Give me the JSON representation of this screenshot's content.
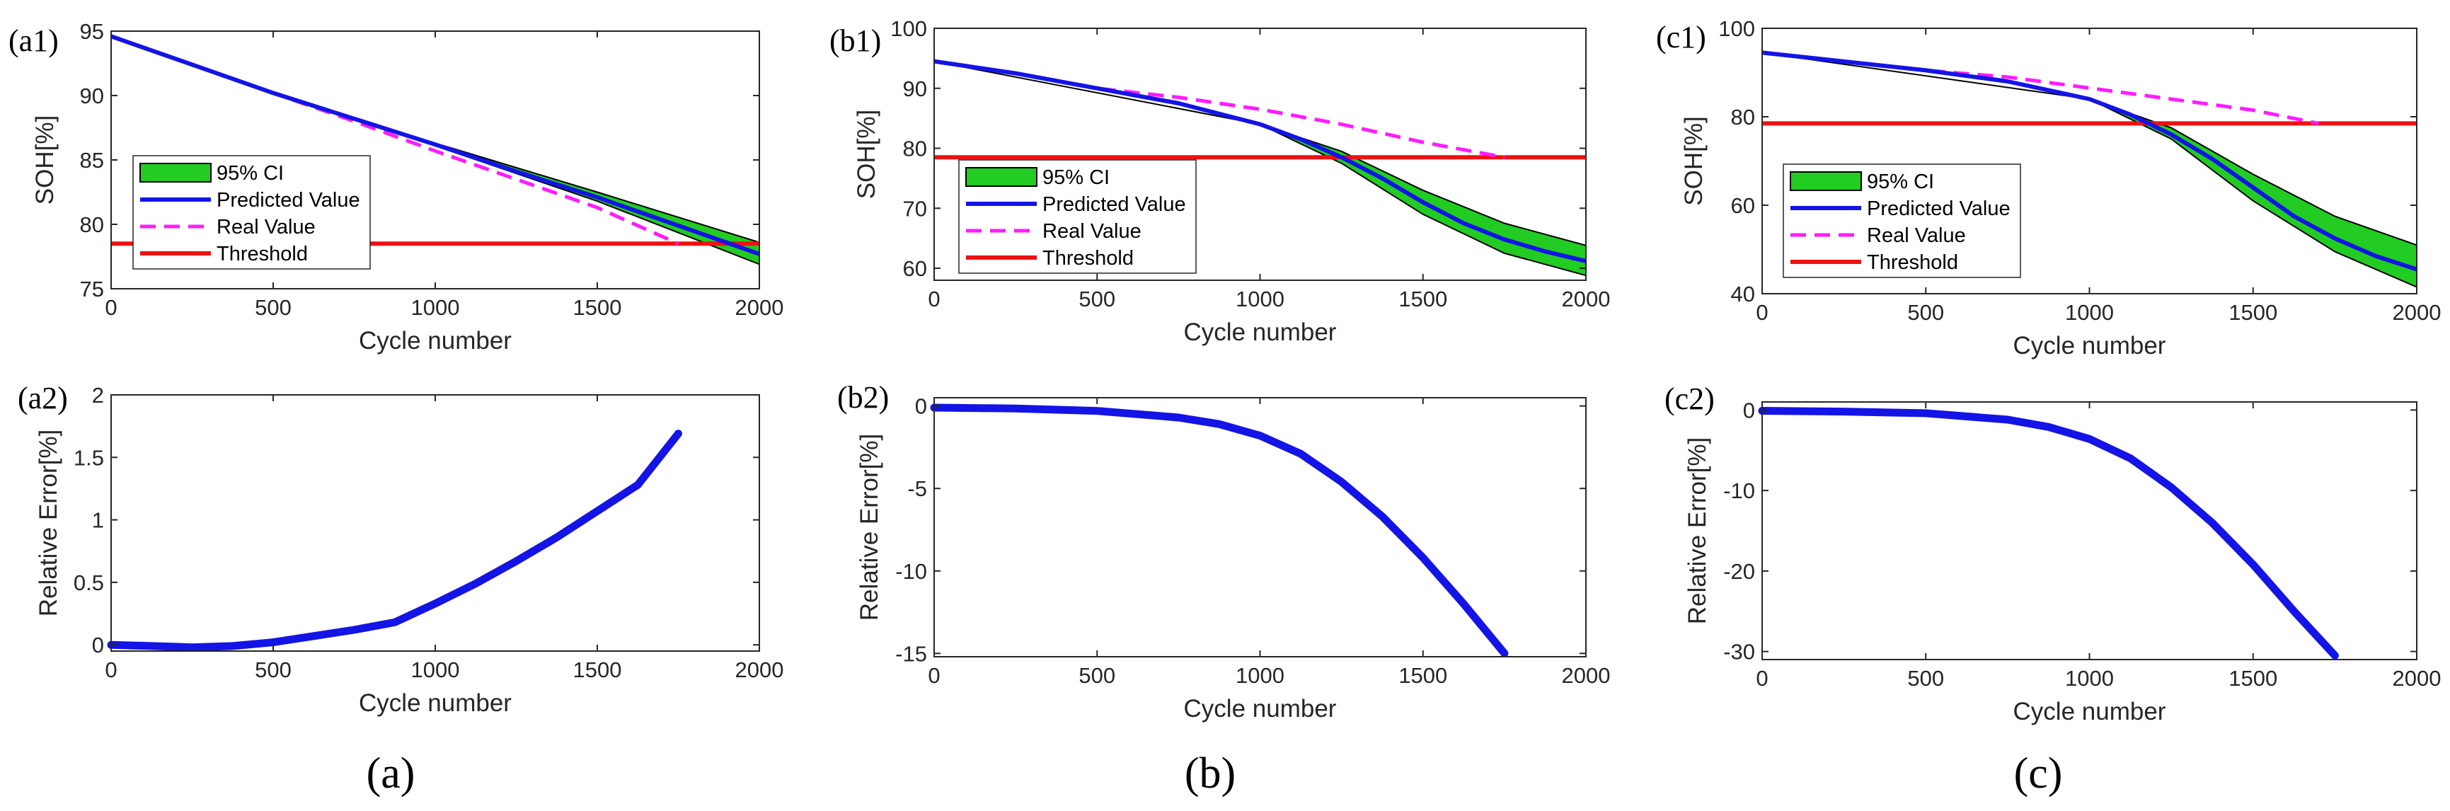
{
  "figure_labels": [
    "(a)",
    "(b)",
    "(c)"
  ],
  "legend": {
    "ci": "95% CI",
    "pred": "Predicted Value",
    "real": "Real Value",
    "thr": "Threshold"
  },
  "colors": {
    "ci_fill": "#22cc22",
    "predicted": "#1414e6",
    "real": "#ff1aff",
    "threshold": "#ee1111",
    "axis": "#262626"
  },
  "chart_data": [
    {
      "id": "a1",
      "label": "(a1)",
      "type": "line",
      "xlabel": "Cycle number",
      "ylabel": "SOH[%]",
      "xlim": [
        0,
        2000
      ],
      "ylim": [
        75,
        95
      ],
      "xticks": [
        0,
        500,
        1000,
        1500,
        2000
      ],
      "yticks": [
        75,
        80,
        85,
        90,
        95
      ],
      "threshold": 78.5,
      "series": [
        {
          "name": "Predicted Value",
          "x": [
            0,
            250,
            500,
            750,
            1000,
            1250,
            1500,
            1750,
            2000
          ],
          "values": [
            94.6,
            92.4,
            90.2,
            88.2,
            86.2,
            84.1,
            82.1,
            79.9,
            77.7
          ]
        },
        {
          "name": "Real Value",
          "x": [
            0,
            250,
            500,
            750,
            1000,
            1250,
            1500,
            1750
          ],
          "values": [
            94.6,
            92.4,
            90.2,
            88.0,
            85.7,
            83.5,
            81.3,
            78.5
          ]
        },
        {
          "name": "95% CI",
          "x": [
            0,
            500,
            1000,
            1500,
            2000
          ],
          "lower": [
            94.6,
            90.2,
            86.1,
            81.8,
            76.9
          ],
          "upper": [
            94.6,
            90.2,
            86.3,
            82.5,
            78.6
          ]
        }
      ]
    },
    {
      "id": "b1",
      "label": "(b1)",
      "type": "line",
      "xlabel": "Cycle number",
      "ylabel": "SOH[%]",
      "xlim": [
        0,
        2000
      ],
      "ylim": [
        58,
        100
      ],
      "xticks": [
        0,
        500,
        1000,
        1500,
        2000
      ],
      "yticks": [
        60,
        70,
        80,
        90,
        100
      ],
      "threshold": 78.5,
      "series": [
        {
          "name": "Predicted Value",
          "x": [
            0,
            250,
            500,
            750,
            1000,
            1125,
            1250,
            1375,
            1500,
            1625,
            1750,
            1875,
            2000
          ],
          "values": [
            94.5,
            92.5,
            90.0,
            87.5,
            84.0,
            81.5,
            78.5,
            75.0,
            71.0,
            67.5,
            64.8,
            62.8,
            61.2
          ]
        },
        {
          "name": "Real Value",
          "x": [
            0,
            250,
            500,
            750,
            1000,
            1250,
            1500,
            1750
          ],
          "values": [
            94.5,
            92.5,
            90.0,
            88.5,
            86.5,
            84.0,
            81.0,
            78.5
          ]
        },
        {
          "name": "95% CI",
          "x": [
            0,
            1000,
            1250,
            1500,
            1750,
            2000
          ],
          "lower": [
            94.5,
            84.0,
            77.5,
            69.0,
            62.5,
            58.8
          ],
          "upper": [
            94.5,
            84.0,
            79.5,
            73.0,
            67.5,
            63.8
          ]
        }
      ]
    },
    {
      "id": "c1",
      "label": "(c1)",
      "type": "line",
      "xlabel": "Cycle number",
      "ylabel": "SOH[%]",
      "xlim": [
        0,
        2000
      ],
      "ylim": [
        40,
        100
      ],
      "xticks": [
        0,
        500,
        1000,
        1500,
        2000
      ],
      "yticks": [
        40,
        60,
        80,
        100
      ],
      "threshold": 78.5,
      "series": [
        {
          "name": "Predicted Value",
          "x": [
            0,
            250,
            500,
            750,
            1000,
            1125,
            1250,
            1375,
            1500,
            1625,
            1750,
            1875,
            2000
          ],
          "values": [
            94.5,
            92.5,
            90.5,
            88.0,
            84.0,
            80.5,
            76.0,
            70.5,
            64.0,
            57.5,
            52.5,
            48.5,
            45.5
          ]
        },
        {
          "name": "Real Value",
          "x": [
            0,
            250,
            500,
            750,
            1000,
            1250,
            1500,
            1700
          ],
          "values": [
            94.5,
            92.5,
            90.5,
            89.0,
            86.5,
            84.0,
            81.5,
            78.5
          ]
        },
        {
          "name": "95% CI",
          "x": [
            0,
            1000,
            1250,
            1500,
            1750,
            2000
          ],
          "lower": [
            94.5,
            84.0,
            75.0,
            61.0,
            49.5,
            41.5
          ],
          "upper": [
            94.5,
            84.0,
            77.5,
            67.0,
            57.5,
            51.0
          ]
        }
      ]
    },
    {
      "id": "a2",
      "label": "(a2)",
      "type": "line",
      "xlabel": "Cycle number",
      "ylabel": "Relative Error[%]",
      "xlim": [
        0,
        2000
      ],
      "ylim": [
        -0.05,
        2
      ],
      "xticks": [
        0,
        500,
        1000,
        1500,
        2000
      ],
      "yticks": [
        0,
        0.5,
        1,
        1.5,
        2
      ],
      "series": [
        {
          "name": "Relative Error",
          "x": [
            0,
            125,
            250,
            375,
            500,
            625,
            750,
            875,
            1000,
            1125,
            1250,
            1375,
            1500,
            1625,
            1750
          ],
          "values": [
            0.0,
            -0.01,
            -0.02,
            -0.01,
            0.02,
            0.07,
            0.12,
            0.18,
            0.33,
            0.49,
            0.67,
            0.86,
            1.07,
            1.28,
            1.69
          ]
        }
      ]
    },
    {
      "id": "b2",
      "label": "(b2)",
      "type": "line",
      "xlabel": "Cycle number",
      "ylabel": "Relative Error[%]",
      "xlim": [
        0,
        2000
      ],
      "ylim": [
        -15.2,
        0.5
      ],
      "xticks": [
        0,
        500,
        1000,
        1500,
        2000
      ],
      "yticks": [
        -15,
        -10,
        -5,
        0
      ],
      "series": [
        {
          "name": "Relative Error",
          "x": [
            0,
            250,
            500,
            750,
            875,
            1000,
            1125,
            1250,
            1375,
            1500,
            1625,
            1750
          ],
          "values": [
            -0.1,
            -0.15,
            -0.3,
            -0.7,
            -1.1,
            -1.8,
            -2.9,
            -4.6,
            -6.7,
            -9.2,
            -12.0,
            -15.0
          ]
        }
      ]
    },
    {
      "id": "c2",
      "label": "(c2)",
      "type": "line",
      "xlabel": "Cycle number",
      "ylabel": "Relative Error[%]",
      "xlim": [
        0,
        2000
      ],
      "ylim": [
        -31,
        1
      ],
      "xticks": [
        0,
        500,
        1000,
        1500,
        2000
      ],
      "yticks": [
        -30,
        -20,
        -10,
        0
      ],
      "series": [
        {
          "name": "Relative Error",
          "x": [
            0,
            250,
            500,
            750,
            875,
            1000,
            1125,
            1250,
            1375,
            1500,
            1625,
            1750
          ],
          "values": [
            -0.1,
            -0.2,
            -0.4,
            -1.2,
            -2.1,
            -3.6,
            -6.0,
            -9.6,
            -14.0,
            -19.2,
            -25.0,
            -30.5
          ]
        }
      ]
    }
  ]
}
